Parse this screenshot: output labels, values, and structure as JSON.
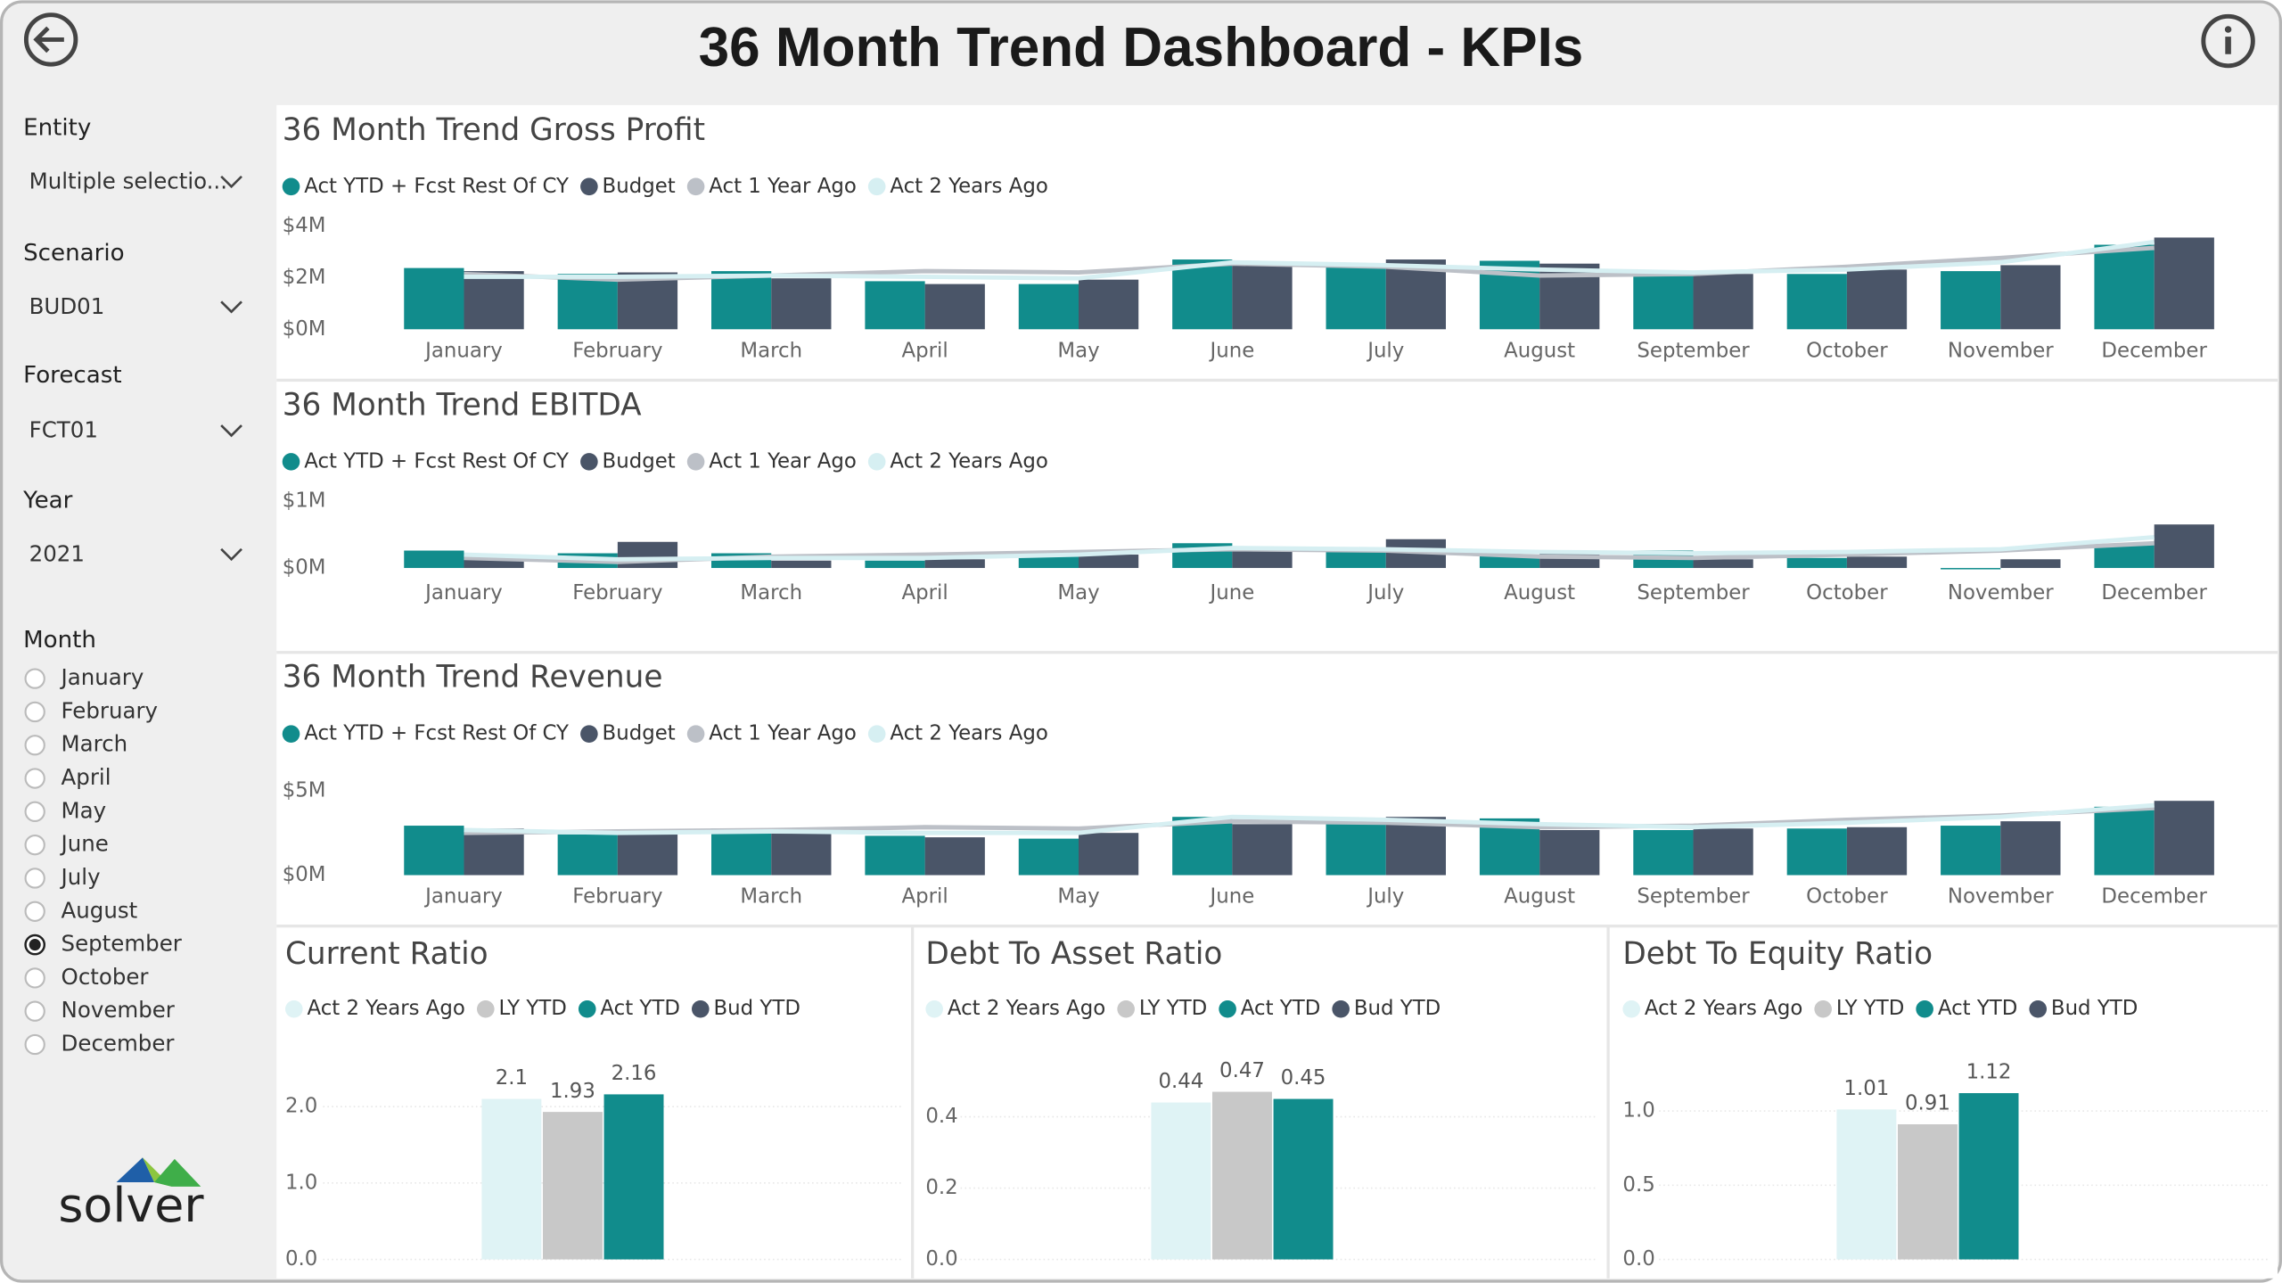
{
  "header": {
    "title": "36 Month Trend Dashboard - KPIs"
  },
  "filters": [
    {
      "label": "Entity",
      "value": "Multiple selectio..."
    },
    {
      "label": "Scenario",
      "value": "BUD01"
    },
    {
      "label": "Forecast",
      "value": "FCT01"
    },
    {
      "label": "Year",
      "value": "2021"
    }
  ],
  "month_slicer": {
    "label": "Month",
    "options": [
      "January",
      "February",
      "March",
      "April",
      "May",
      "June",
      "July",
      "August",
      "September",
      "October",
      "November",
      "December"
    ],
    "selected": "September"
  },
  "logo": {
    "text": "solver"
  },
  "chart_data": [
    {
      "type": "combo",
      "title": "36 Month Trend Gross Profit",
      "categories": [
        "January",
        "February",
        "March",
        "April",
        "May",
        "June",
        "July",
        "August",
        "September",
        "October",
        "November",
        "December"
      ],
      "series": [
        {
          "name": "Act YTD + Fcst Rest Of CY",
          "color": "#118c8c",
          "mark": "bar",
          "values": [
            2.37,
            2.14,
            2.25,
            1.86,
            1.75,
            2.7,
            2.54,
            2.65,
            2.14,
            2.14,
            2.25,
            3.27
          ]
        },
        {
          "name": "Budget",
          "color": "#4a5568",
          "mark": "bar",
          "values": [
            2.25,
            2.2,
            1.97,
            1.75,
            1.92,
            2.54,
            2.7,
            2.54,
            2.14,
            2.31,
            2.48,
            3.55
          ]
        },
        {
          "name": "Act 1 Year Ago",
          "color": "#bcc0c7",
          "mark": "line",
          "values": [
            2.14,
            1.92,
            2.08,
            2.25,
            2.2,
            2.54,
            2.42,
            2.08,
            2.14,
            2.42,
            2.76,
            3.15
          ]
        },
        {
          "name": "Act 2 Years Ago",
          "color": "#d6eff2",
          "mark": "line",
          "values": [
            2.03,
            2.03,
            2.08,
            2.03,
            1.97,
            2.59,
            2.48,
            2.31,
            2.2,
            2.31,
            2.59,
            3.38
          ]
        }
      ],
      "ylim": [
        0,
        4
      ],
      "yticks": [
        {
          "value": 0,
          "label": "$0M"
        },
        {
          "value": 2,
          "label": "$2M"
        },
        {
          "value": 4,
          "label": "$4M"
        }
      ]
    },
    {
      "type": "combo",
      "title": "36 Month Trend EBITDA",
      "categories": [
        "January",
        "February",
        "March",
        "April",
        "May",
        "June",
        "July",
        "August",
        "September",
        "October",
        "November",
        "December"
      ],
      "series": [
        {
          "name": "Act YTD + Fcst Rest Of CY",
          "color": "#118c8c",
          "mark": "bar",
          "values": [
            0.26,
            0.22,
            0.22,
            0.11,
            0.2,
            0.37,
            0.28,
            0.2,
            0.26,
            0.15,
            -0.02,
            0.35
          ]
        },
        {
          "name": "Budget",
          "color": "#4a5568",
          "mark": "bar",
          "values": [
            0.2,
            0.39,
            0.11,
            0.13,
            0.2,
            0.26,
            0.43,
            0.26,
            0.13,
            0.17,
            0.13,
            0.65
          ]
        },
        {
          "name": "Act 1 Year Ago",
          "color": "#bcc0c7",
          "mark": "line",
          "values": [
            0.15,
            0.09,
            0.17,
            0.2,
            0.24,
            0.28,
            0.26,
            0.17,
            0.15,
            0.2,
            0.26,
            0.37
          ]
        },
        {
          "name": "Act 2 Years Ago",
          "color": "#d6eff2",
          "mark": "line",
          "values": [
            0.2,
            0.13,
            0.15,
            0.15,
            0.2,
            0.3,
            0.28,
            0.24,
            0.22,
            0.24,
            0.28,
            0.46
          ]
        }
      ],
      "ylim": [
        -0.05,
        1
      ],
      "yticks": [
        {
          "value": 0,
          "label": "$0M"
        },
        {
          "value": 1,
          "label": "$1M"
        }
      ]
    },
    {
      "type": "combo",
      "title": "36 Month Trend Revenue",
      "categories": [
        "January",
        "February",
        "March",
        "April",
        "May",
        "June",
        "July",
        "August",
        "September",
        "October",
        "November",
        "December"
      ],
      "series": [
        {
          "name": "Act YTD + Fcst Rest Of CY",
          "color": "#118c8c",
          "mark": "bar",
          "values": [
            2.93,
            2.41,
            2.76,
            2.33,
            2.16,
            3.45,
            3.1,
            3.36,
            2.67,
            2.76,
            2.93,
            4.05
          ]
        },
        {
          "name": "Budget",
          "color": "#4a5568",
          "mark": "bar",
          "values": [
            2.76,
            2.5,
            2.5,
            2.24,
            2.5,
            3.02,
            3.45,
            2.67,
            2.76,
            2.84,
            3.19,
            4.4
          ]
        },
        {
          "name": "Act 1 Year Ago",
          "color": "#bcc0c7",
          "mark": "line",
          "values": [
            2.5,
            2.59,
            2.67,
            2.84,
            2.76,
            3.19,
            3.1,
            2.84,
            2.93,
            3.28,
            3.53,
            3.97
          ]
        },
        {
          "name": "Act 2 Years Ago",
          "color": "#d6eff2",
          "mark": "line",
          "values": [
            2.67,
            2.5,
            2.59,
            2.5,
            2.5,
            3.45,
            3.28,
            3.02,
            2.84,
            3.1,
            3.45,
            4.14
          ]
        }
      ],
      "ylim": [
        0,
        6
      ],
      "yticks": [
        {
          "value": 0,
          "label": "$0M"
        },
        {
          "value": 5,
          "label": "$5M"
        }
      ]
    },
    {
      "type": "bar",
      "title": "Current Ratio",
      "categories": [
        null
      ],
      "series": [
        {
          "name": "Act 2 Years Ago",
          "color": "#dff3f5",
          "values": [
            2.1
          ]
        },
        {
          "name": "LY YTD",
          "color": "#c8c8c8",
          "values": [
            1.93
          ]
        },
        {
          "name": "Act YTD",
          "color": "#118c8c",
          "values": [
            2.16
          ]
        },
        {
          "name": "Bud YTD",
          "color": "#4a5568",
          "values": [
            null
          ]
        }
      ],
      "ylim": [
        0,
        3
      ],
      "yticks": [
        {
          "value": 0,
          "label": "0.0"
        },
        {
          "value": 1,
          "label": "1.0"
        },
        {
          "value": 2,
          "label": "2.0"
        }
      ],
      "grid": true
    },
    {
      "type": "bar",
      "title": "Debt To Asset Ratio",
      "categories": [
        null
      ],
      "series": [
        {
          "name": "Act 2 Years Ago",
          "color": "#dff3f5",
          "values": [
            0.44
          ]
        },
        {
          "name": "LY YTD",
          "color": "#c8c8c8",
          "values": [
            0.47
          ]
        },
        {
          "name": "Act YTD",
          "color": "#118c8c",
          "values": [
            0.45
          ]
        },
        {
          "name": "Bud YTD",
          "color": "#4a5568",
          "values": [
            null
          ]
        }
      ],
      "ylim": [
        0,
        0.6
      ],
      "yticks": [
        {
          "value": 0,
          "label": "0.0"
        },
        {
          "value": 0.2,
          "label": "0.2"
        },
        {
          "value": 0.4,
          "label": "0.4"
        }
      ],
      "grid": true
    },
    {
      "type": "bar",
      "title": "Debt To Equity Ratio",
      "categories": [
        null
      ],
      "series": [
        {
          "name": "Act 2 Years Ago",
          "color": "#dff3f5",
          "values": [
            1.01
          ]
        },
        {
          "name": "LY YTD",
          "color": "#c8c8c8",
          "values": [
            0.91
          ]
        },
        {
          "name": "Act YTD",
          "color": "#118c8c",
          "values": [
            1.12
          ]
        },
        {
          "name": "Bud YTD",
          "color": "#4a5568",
          "values": [
            null
          ]
        }
      ],
      "ylim": [
        0,
        1.5
      ],
      "yticks": [
        {
          "value": 0,
          "label": "0.0"
        },
        {
          "value": 0.5,
          "label": "0.5"
        },
        {
          "value": 1,
          "label": "1.0"
        }
      ],
      "grid": true
    }
  ]
}
